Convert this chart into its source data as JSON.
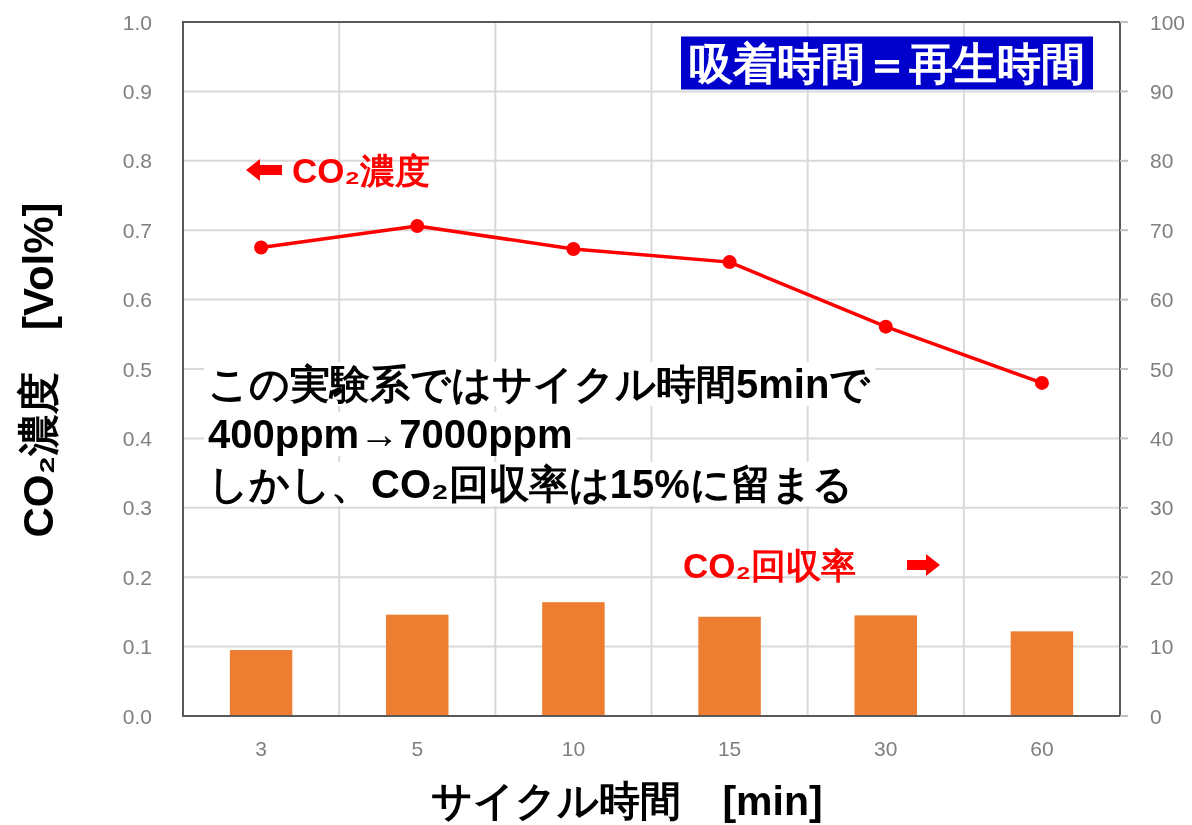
{
  "chart_data": {
    "type": "bar",
    "categories": [
      "3",
      "5",
      "10",
      "15",
      "30",
      "60"
    ],
    "xlabel": "サイクル時間　[min]",
    "ylabel": "CO₂濃度　[Vol%]",
    "series": [
      {
        "type": "line",
        "color": "#ff0000",
        "values": [
          0.675,
          0.706,
          0.673,
          0.654,
          0.561,
          0.48
        ]
      },
      {
        "axis": "y2",
        "color": "#ed7d31",
        "values": [
          9.5,
          14.6,
          16.4,
          14.3,
          14.5,
          12.2
        ]
      }
    ],
    "ylim": [
      0,
      1
    ],
    "yticks": [
      {
        "value": 0,
        "label": "0.0"
      },
      0.1,
      0.2,
      0.3,
      0.4,
      0.5,
      0.6,
      0.7,
      0.8,
      0.9,
      {
        "value": 1,
        "label": "1.0"
      }
    ],
    "y2lim": [
      0,
      100
    ],
    "y2ticks": [
      0,
      10,
      20,
      30,
      40,
      50,
      60,
      70,
      80,
      90,
      100
    ],
    "grid": true,
    "marker": "circle",
    "line_style": "solid",
    "annotations": [
      "吸着時間＝再生時間",
      "CO₂濃度",
      "この実験系ではサイクル時間5minで\n400ppm→7000ppm\nしかし、CO₂回収率は15%に留まる",
      "CO₂回収率"
    ]
  }
}
